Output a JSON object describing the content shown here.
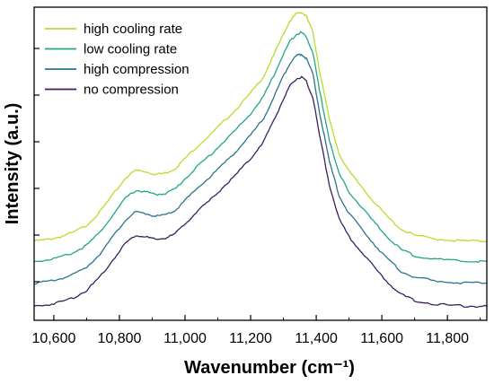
{
  "chart_data": {
    "type": "line",
    "title": "",
    "xlabel": "Wavenumber (cm⁻¹)",
    "ylabel": "Intensity (a.u.)",
    "xlim": [
      10540,
      11920
    ],
    "ylim": [
      0,
      1
    ],
    "x_ticks": [
      10600,
      10800,
      11000,
      11200,
      11400,
      11600,
      11800
    ],
    "x_tick_labels": [
      "10,600",
      "10,800",
      "11,000",
      "11,200",
      "11,400",
      "11,600",
      "11,800"
    ],
    "y_tick_labels_shown": false,
    "legend_position": "top-left",
    "grid": false,
    "x": [
      10540,
      10580,
      10620,
      10660,
      10700,
      10740,
      10780,
      10820,
      10850,
      10880,
      10910,
      10940,
      10970,
      11000,
      11040,
      11080,
      11120,
      11160,
      11200,
      11240,
      11270,
      11300,
      11320,
      11340,
      11355,
      11370,
      11390,
      11410,
      11440,
      11470,
      11500,
      11540,
      11580,
      11620,
      11660,
      11700,
      11760,
      11820,
      11880,
      11920
    ],
    "series": [
      {
        "name": "high cooling rate",
        "color": "#b5de2b",
        "values": [
          0.23,
          0.235,
          0.245,
          0.26,
          0.285,
          0.33,
          0.39,
          0.45,
          0.475,
          0.47,
          0.46,
          0.465,
          0.48,
          0.515,
          0.56,
          0.6,
          0.645,
          0.69,
          0.74,
          0.8,
          0.87,
          0.945,
          0.99,
          1.015,
          1.02,
          1.005,
          0.95,
          0.82,
          0.65,
          0.53,
          0.47,
          0.415,
          0.36,
          0.31,
          0.27,
          0.25,
          0.238,
          0.232,
          0.23,
          0.23
        ]
      },
      {
        "name": "low cooling rate",
        "color": "#21a685",
        "values": [
          0.16,
          0.165,
          0.175,
          0.19,
          0.215,
          0.26,
          0.32,
          0.38,
          0.405,
          0.4,
          0.39,
          0.395,
          0.41,
          0.445,
          0.49,
          0.53,
          0.575,
          0.62,
          0.67,
          0.73,
          0.8,
          0.875,
          0.92,
          0.945,
          0.95,
          0.935,
          0.88,
          0.75,
          0.58,
          0.46,
          0.4,
          0.345,
          0.29,
          0.24,
          0.2,
          0.18,
          0.168,
          0.162,
          0.16,
          0.16
        ]
      },
      {
        "name": "high compression",
        "color": "#2c728e",
        "values": [
          0.085,
          0.09,
          0.1,
          0.115,
          0.14,
          0.185,
          0.245,
          0.305,
          0.33,
          0.325,
          0.315,
          0.32,
          0.335,
          0.37,
          0.415,
          0.455,
          0.5,
          0.545,
          0.595,
          0.655,
          0.725,
          0.8,
          0.845,
          0.87,
          0.875,
          0.86,
          0.805,
          0.675,
          0.505,
          0.385,
          0.325,
          0.27,
          0.215,
          0.165,
          0.125,
          0.105,
          0.093,
          0.087,
          0.085,
          0.085
        ]
      },
      {
        "name": "no compression",
        "color": "#3b1f5e",
        "values": [
          0.005,
          0.01,
          0.02,
          0.035,
          0.06,
          0.105,
          0.165,
          0.225,
          0.25,
          0.245,
          0.235,
          0.24,
          0.255,
          0.29,
          0.335,
          0.375,
          0.42,
          0.465,
          0.515,
          0.575,
          0.645,
          0.72,
          0.765,
          0.79,
          0.795,
          0.78,
          0.725,
          0.595,
          0.425,
          0.305,
          0.245,
          0.19,
          0.135,
          0.085,
          0.045,
          0.025,
          0.013,
          0.007,
          0.005,
          0.005
        ]
      }
    ]
  }
}
